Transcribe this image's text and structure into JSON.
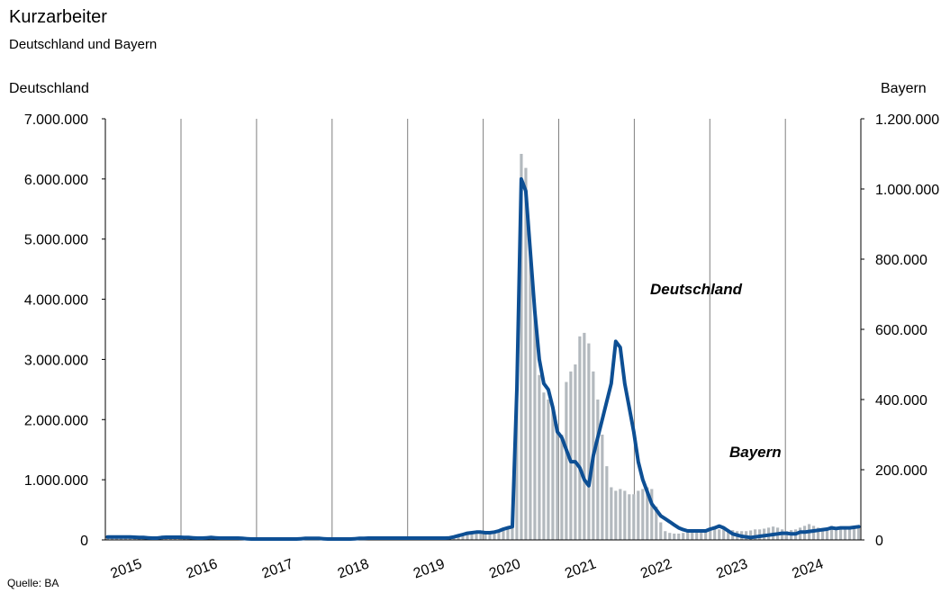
{
  "chart_data": {
    "type": "bar+line",
    "title": "Kurzarbeiter",
    "subtitle": "Deutschland und Bayern",
    "left_axis": {
      "label": "Deutschland",
      "ylim": [
        0,
        7000000
      ],
      "ticks": [
        0,
        1000000,
        2000000,
        3000000,
        4000000,
        5000000,
        6000000,
        7000000
      ],
      "tick_labels": [
        "0",
        "1.000.000",
        "2.000.000",
        "3.000.000",
        "4.000.000",
        "5.000.000",
        "6.000.000",
        "7.000.000"
      ]
    },
    "right_axis": {
      "label": "Bayern",
      "ylim": [
        0,
        1200000
      ],
      "ticks": [
        0,
        200000,
        400000,
        600000,
        800000,
        1000000,
        1200000
      ],
      "tick_labels": [
        "0",
        "200.000",
        "400.000",
        "600.000",
        "800.000",
        "1.000.000",
        "1.200.000"
      ]
    },
    "x_axis": {
      "years": [
        "2015",
        "2016",
        "2017",
        "2018",
        "2019",
        "2020",
        "2021",
        "2022",
        "2023",
        "2024"
      ],
      "months_per_year": 12,
      "grid": "vertical at year boundaries"
    },
    "source": "Quelle: BA",
    "series": [
      {
        "name": "Deutschland",
        "type": "line",
        "axis": "left",
        "color": "#0d4f94",
        "values": [
          50000,
          50000,
          50000,
          50000,
          50000,
          50000,
          45000,
          40000,
          40000,
          35000,
          30000,
          30000,
          40000,
          45000,
          45000,
          45000,
          45000,
          40000,
          40000,
          35000,
          30000,
          30000,
          35000,
          40000,
          35000,
          30000,
          30000,
          30000,
          30000,
          30000,
          25000,
          20000,
          15000,
          15000,
          15000,
          15000,
          15000,
          15000,
          15000,
          15000,
          15000,
          15000,
          15000,
          20000,
          25000,
          25000,
          25000,
          25000,
          20000,
          15000,
          15000,
          15000,
          15000,
          15000,
          15000,
          20000,
          25000,
          25000,
          30000,
          30000,
          30000,
          30000,
          30000,
          30000,
          30000,
          30000,
          30000,
          30000,
          30000,
          30000,
          30000,
          30000,
          30000,
          30000,
          30000,
          30000,
          35000,
          50000,
          70000,
          90000,
          110000,
          120000,
          130000,
          130000,
          120000,
          120000,
          130000,
          150000,
          180000,
          200000,
          220000,
          2500000,
          6000000,
          5800000,
          4800000,
          3800000,
          3000000,
          2600000,
          2500000,
          2200000,
          1800000,
          1700000,
          1500000,
          1300000,
          1300000,
          1200000,
          1000000,
          900000,
          1400000,
          1700000,
          2000000,
          2300000,
          2600000,
          3300000,
          3200000,
          2600000,
          2200000,
          1800000,
          1300000,
          1000000,
          800000,
          600000,
          500000,
          400000,
          350000,
          300000,
          250000,
          200000,
          170000,
          150000,
          150000,
          150000,
          150000,
          150000,
          180000,
          200000,
          230000,
          200000,
          150000,
          100000,
          80000,
          60000,
          50000,
          40000,
          50000,
          60000,
          70000,
          80000,
          90000,
          100000,
          110000,
          110000,
          100000,
          100000,
          130000,
          130000,
          140000,
          150000,
          160000,
          170000,
          180000,
          200000,
          190000,
          200000,
          200000,
          200000,
          210000,
          220000
        ]
      },
      {
        "name": "Bayern",
        "type": "bar",
        "axis": "right",
        "color": "#b3b9be",
        "values": [
          8000,
          8000,
          8000,
          8000,
          8000,
          8000,
          7000,
          6000,
          6000,
          5000,
          5000,
          5000,
          7000,
          8000,
          8000,
          8000,
          8000,
          7000,
          6000,
          6000,
          5000,
          5000,
          6000,
          7000,
          6000,
          5000,
          5000,
          5000,
          5000,
          5000,
          4000,
          3000,
          2500,
          2500,
          2500,
          2500,
          2500,
          2500,
          2500,
          2500,
          2500,
          2500,
          3000,
          3500,
          4000,
          4000,
          4000,
          4000,
          3500,
          3000,
          3000,
          3000,
          3000,
          3000,
          3500,
          4000,
          4500,
          5000,
          5000,
          5000,
          5000,
          5000,
          5000,
          5000,
          5000,
          5000,
          5000,
          5000,
          5000,
          5000,
          5000,
          5000,
          5000,
          5000,
          5000,
          5500,
          6000,
          9000,
          12000,
          15000,
          18000,
          20000,
          22000,
          22000,
          20000,
          20000,
          22000,
          26000,
          30000,
          34000,
          38000,
          400000,
          1100000,
          1060000,
          830000,
          650000,
          470000,
          420000,
          400000,
          380000,
          330000,
          300000,
          450000,
          480000,
          500000,
          580000,
          590000,
          560000,
          480000,
          400000,
          300000,
          210000,
          150000,
          140000,
          145000,
          140000,
          130000,
          130000,
          140000,
          145000,
          150000,
          145000,
          95000,
          50000,
          25000,
          20000,
          18000,
          18000,
          20000,
          22000,
          25000,
          27000,
          28000,
          28000,
          28000,
          30000,
          30000,
          30000,
          30000,
          28000,
          25000,
          25000,
          25000,
          27000,
          30000,
          30000,
          32000,
          35000,
          38000,
          35000,
          30000,
          25000,
          28000,
          30000,
          35000,
          40000,
          45000,
          40000,
          35000,
          30000,
          35000,
          40000,
          36000,
          38000,
          35000,
          30000,
          32000,
          35000
        ]
      }
    ],
    "annotations": [
      {
        "text": "Deutschland",
        "color": "#0d4f94",
        "series": "Deutschland"
      },
      {
        "text": "Bayern",
        "color": "#b3b9be",
        "series": "Bayern"
      }
    ]
  }
}
